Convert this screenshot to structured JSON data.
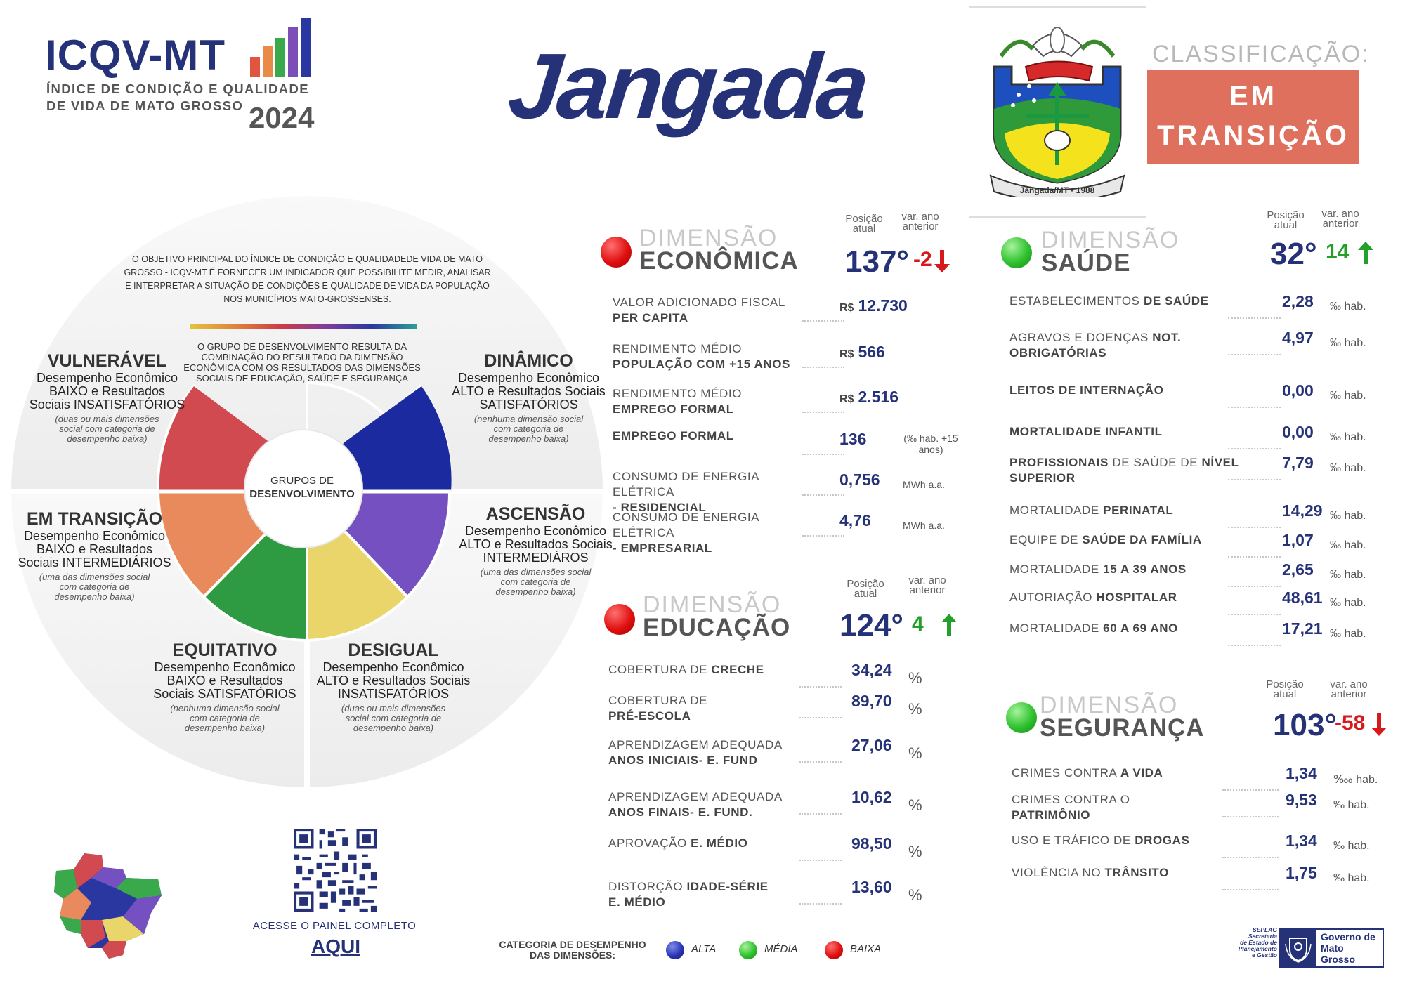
{
  "header": {
    "brand": "ICQV-MT",
    "subtitle_l1": "ÍNDICE DE CONDIÇÃO E QUALIDADE",
    "subtitle_l2": "DE VIDA DE MATO GROSSO",
    "year": "2024",
    "municipality": "Jangada"
  },
  "classification": {
    "label": "CLASSIFICAÇÃO:",
    "line1": "EM",
    "line2": "TRANSIÇÃO"
  },
  "wheel": {
    "objective": "O OBJETIVO PRINCIPAL DO ÍNDICE DE CONDIÇÃO E QUALIDADEDE VIDA DE MATO GROSSO - ICQV-MT É FORNECER UM INDICADOR QUE POSSIBILITE MEDIR, ANALISAR E INTERPRETAR A SITUAÇÃO DE CONDIÇÕES E QUALIDADE DE VIDA DA POPULAÇÃO NOS MUNICÍPIOS MATO-GROSSENSES.",
    "group_desc": "O GRUPO DE DESENVOLVIMENTO RESULTA DA COMBINAÇÃO DO RESULTADO DA DIMENSÃO ECONÔMICA COM OS RESULTADOS DAS DIMENSÕES SOCIAIS DE EDUCAÇÃO, SAÚDE E SEGURANÇA",
    "center_l1": "GRUPOS DE",
    "center_l2": "DESENVOLVIMENTO",
    "categories": [
      {
        "title": "VULNERÁVEL",
        "desc": "Desempenho Econômico BAIXO e Resultados Sociais INSATISFATÓRIOS",
        "note": "(duas ou mais dimensões social com categoria de desempenho baixa)"
      },
      {
        "title": "DINÂMICO",
        "desc": "Desempenho Econômico ALTO e Resultados Sociais SATISFATÓRIOS",
        "note": "(nenhuma dimensão social com categoria de desempenho baixa)"
      },
      {
        "title": "EM TRANSIÇÃO",
        "desc": "Desempenho Econômico BAIXO e Resultados Sociais INTERMEDIÁRIOS",
        "note": "(uma das dimensões social com categoria de desempenho baixa)"
      },
      {
        "title": "ASCENSÃO",
        "desc": "Desempenho Econômico ALTO e Resultados Sociais INTERMEDIÁROS",
        "note": "(uma das dimensões social com categoria de desempenho baixa)"
      },
      {
        "title": "EQUITATIVO",
        "desc": "Desempenho Econômico BAIXO e Resultados Sociais SATISFATÓRIOS",
        "note": "(nenhuma dimensão social com categoria de desempenho baixa)"
      },
      {
        "title": "DESIGUAL",
        "desc": "Desempenho Econômico ALTO e Resultados Sociais INSATISFATÓRIOS",
        "note": "(duas ou mais dimensões social com categoria de desempenho baixa)"
      }
    ]
  },
  "labels": {
    "dim": "DIMENSÃO",
    "pos_atual": "Posição atual",
    "var_ano": "var. ano anterior"
  },
  "colors": {
    "red": "#e01010",
    "green": "#2fc12f",
    "blue": "#2a35b6",
    "navy": "#263278",
    "classif": "#e0705e"
  },
  "economica": {
    "name": "ECONÔMICA",
    "category": "red",
    "pos": "137°",
    "var": "-2",
    "trend": "down",
    "items": [
      {
        "l1": "VALOR ADICIONADO FISCAL",
        "l2": "PER CAPITA",
        "cur": "R$",
        "val": "12.730",
        "unit": ""
      },
      {
        "l1": "RENDIMENTO MÉDIO",
        "l2": "População com +15 anos",
        "cur": "R$",
        "val": "566",
        "unit": ""
      },
      {
        "l1": "RENDIMENTO MÉDIO",
        "l2": "EMPREGO FORMAL",
        "cur": "R$",
        "val": "2.516",
        "unit": ""
      },
      {
        "l1": "",
        "l2": "EMPREGO FORMAL",
        "cur": "",
        "val": "136",
        "unit": "(‰ hab. +15 anos)"
      },
      {
        "l1": "CONSUMO DE ENERGIA ELÉTRICA",
        "l2": "- RESIDENCIAL",
        "cur": "",
        "val": "0,756",
        "unit": "MWh a.a."
      },
      {
        "l1": "CONSUMO DE ENERGIA ELÉTRICA",
        "l2": "- EMPRESARIAL",
        "cur": "",
        "val": "4,76",
        "unit": "MWh a.a."
      }
    ]
  },
  "educacao": {
    "name": "EDUCAÇÃO",
    "category": "red",
    "pos": "124°",
    "var": "4",
    "trend": "up",
    "items": [
      {
        "l1": "COBERTURA DE",
        "l1b": "CRECHE",
        "l2": "",
        "val": "34,24",
        "unit": "%"
      },
      {
        "l1": "COBERTURA DE",
        "l1b": "",
        "l2": "PRÉ-ESCOLA",
        "val": "89,70",
        "unit": "%"
      },
      {
        "l1": "APRENDIZAGEM ADEQUADA",
        "l1b": "",
        "l2": "ANOS INICIAIS- E. Fund",
        "val": "27,06",
        "unit": "%"
      },
      {
        "l1": "APRENDIZAGEM ADEQUADA",
        "l1b": "",
        "l2": "ANOS FINAIS- E. Fund.",
        "val": "10,62",
        "unit": "%"
      },
      {
        "l1": "APROVAÇÃO",
        "l1b": "E. MÉDIO",
        "l2": "",
        "val": "98,50",
        "unit": "%"
      },
      {
        "l1": "DISTORÇÃO",
        "l1b": "IDADE-SÉRIE",
        "l2": "E. MÉDIO",
        "val": "13,60",
        "unit": "%"
      }
    ]
  },
  "saude": {
    "name": "SAÚDE",
    "category": "green",
    "pos": "32°",
    "var": "14",
    "trend": "up",
    "items": [
      {
        "l1": "ESTABELECIMENTOS",
        "l1b": "DE SAÚDE",
        "l2": "",
        "val": "2,28",
        "unit": "‰ hab."
      },
      {
        "l1": "AGRAVOS E DOENÇAS",
        "l1b": "NOT.",
        "l2": "OBRIGATÓRIAS",
        "val": "4,97",
        "unit": "‰ hab."
      },
      {
        "l1": "",
        "l1b": "LEITOS DE INTERNAÇÃO",
        "l2": "",
        "val": "0,00",
        "unit": "‰ hab."
      },
      {
        "l1": "",
        "l1b": "MORTALIDADE INFANTIL",
        "l2": "",
        "val": "0,00",
        "unit": "‰ hab."
      },
      {
        "l1": "",
        "l1b": "PROFISSIONAIS",
        "l1c": "DE SAÚDE DE",
        "l1d": "NÍVEL",
        "l2": "SUPERIOR",
        "val": "7,79",
        "unit": "‰ hab."
      },
      {
        "l1": "MORTALIDADE",
        "l1b": "PERINATAL",
        "l2": "",
        "val": "14,29",
        "unit": "‰ hab."
      },
      {
        "l1": "EQUIPE DE",
        "l1b": "SAÚDE DA FAMÍLIA",
        "l2": "",
        "val": "1,07",
        "unit": "‰ hab."
      },
      {
        "l1": "MORTALIDADE",
        "l1b": "15 A 39 ANOS",
        "l2": "",
        "val": "2,65",
        "unit": "‰ hab."
      },
      {
        "l1": "AUTORIAÇÃO",
        "l1b": "HOSPITALAR",
        "l2": "",
        "val": "48,61",
        "unit": "‰ hab."
      },
      {
        "l1": "MORTALIDADE",
        "l1b": "60 A 69 ANO",
        "l2": "",
        "val": "17,21",
        "unit": "‰ hab."
      }
    ]
  },
  "seguranca": {
    "name": "SEGURANÇA",
    "category": "green",
    "pos": "103°",
    "var": "-58",
    "trend": "down",
    "items": [
      {
        "l1": "CRIMES CONTRA",
        "l1b": "A VIDA",
        "l2": "",
        "val": "1,34",
        "unit": "‱ hab."
      },
      {
        "l1": "CRIMES CONTRA O",
        "l1b": "",
        "l2": "PATRIMÔNIO",
        "val": "9,53",
        "unit": "‰ hab."
      },
      {
        "l1": "USO E TRÁFICO DE",
        "l1b": "DROGAS",
        "l2": "",
        "val": "1,34",
        "unit": "‰ hab."
      },
      {
        "l1": "VIOLÊNCIA NO",
        "l1b": "TRÂNSITO",
        "l2": "",
        "val": "1,75",
        "unit": "‰ hab."
      }
    ]
  },
  "footer": {
    "panel_link": "ACESSE O PAINEL COMPLETO",
    "here": "AQUI",
    "legend_l1": "CATEGORIA DE DESEMPENHO",
    "legend_l2": "DAS DIMENSÕES:",
    "legend": [
      {
        "label": "ALTA",
        "color": "blue"
      },
      {
        "label": "MÉDIA",
        "color": "green"
      },
      {
        "label": "BAIXA",
        "color": "red"
      }
    ],
    "seplag_l1": "SEPLAG",
    "seplag_l2": "Secretaria",
    "seplag_l3": "de Estado de",
    "seplag_l4": "Planejamento",
    "seplag_l5": "e Gestão",
    "gov_l1": "Governo de",
    "gov_l2": "Mato",
    "gov_l3": "Grosso",
    "crest_text": "Jangada/MT - 1988"
  }
}
